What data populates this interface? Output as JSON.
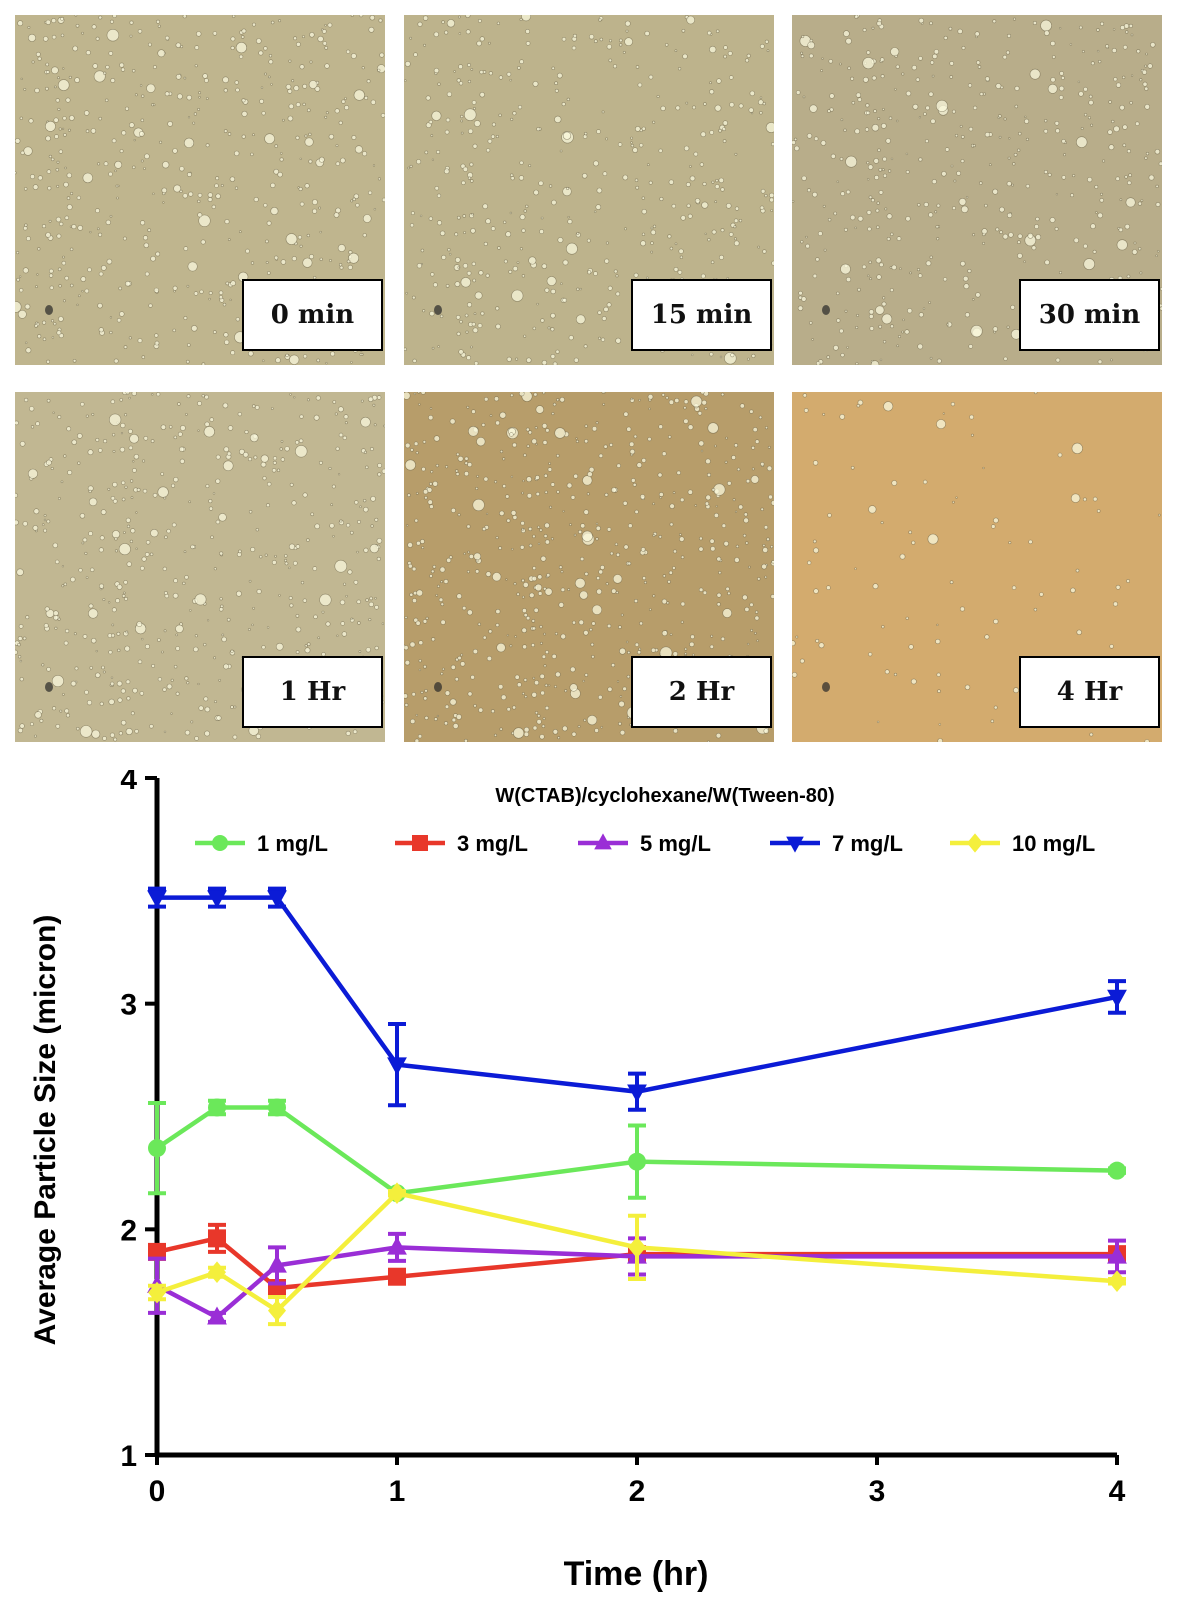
{
  "micrographs": [
    {
      "label": "0 min",
      "bg": "#bfb58e",
      "density": 520,
      "spot": true
    },
    {
      "label": "15 min",
      "bg": "#bdb38c",
      "density": 460,
      "spot": true
    },
    {
      "label": "30 min",
      "bg": "#b8ad8a",
      "density": 480,
      "spot": true
    },
    {
      "label": "1 Hr",
      "bg": "#c1b792",
      "density": 540,
      "spot": true
    },
    {
      "label": "2 Hr",
      "bg": "#b79d6a",
      "density": 620,
      "spot": true
    },
    {
      "label": "4 Hr",
      "bg": "#d3ab6e",
      "density": 90,
      "spot": true
    }
  ],
  "chart_data": {
    "type": "line",
    "title": "W(CTAB)/cyclohexane/W(Tween-80)",
    "xlabel": "Time (hr)",
    "ylabel": "Average Particle Size (micron)",
    "xlim": [
      0,
      4
    ],
    "ylim": [
      1,
      4
    ],
    "x_ticks": [
      0,
      1,
      2,
      3,
      4
    ],
    "y_ticks": [
      1,
      2,
      3,
      4
    ],
    "x": [
      0,
      0.25,
      0.5,
      1,
      2,
      4
    ],
    "legend_position": "top",
    "series": [
      {
        "name": "1 mg/L",
        "color": "#6be85a",
        "marker": "circle",
        "values": [
          2.36,
          2.54,
          2.54,
          2.16,
          2.3,
          2.26
        ],
        "errors": [
          0.2,
          0.03,
          0.03,
          0.01,
          0.16,
          0.01
        ]
      },
      {
        "name": "3 mg/L",
        "color": "#e8372a",
        "marker": "square",
        "values": [
          1.9,
          1.96,
          1.74,
          1.79,
          1.89,
          1.89
        ],
        "errors": [
          0.02,
          0.06,
          0.02,
          0.02,
          0.02,
          0.02
        ]
      },
      {
        "name": "5 mg/L",
        "color": "#9a2ed6",
        "marker": "triangle-up",
        "values": [
          1.75,
          1.61,
          1.84,
          1.92,
          1.88,
          1.88
        ],
        "errors": [
          0.12,
          0.02,
          0.08,
          0.06,
          0.08,
          0.07
        ]
      },
      {
        "name": "7 mg/L",
        "color": "#0b1bd6",
        "marker": "triangle-down",
        "values": [
          3.47,
          3.47,
          3.47,
          2.73,
          2.61,
          3.03
        ],
        "errors": [
          0.04,
          0.04,
          0.04,
          0.18,
          0.08,
          0.07
        ]
      },
      {
        "name": "10 mg/L",
        "color": "#f4ef3c",
        "marker": "diamond",
        "values": [
          1.72,
          1.81,
          1.64,
          2.16,
          1.92,
          1.77
        ],
        "errors": [
          0.03,
          0.02,
          0.06,
          0.01,
          0.14,
          0.01
        ]
      }
    ]
  }
}
